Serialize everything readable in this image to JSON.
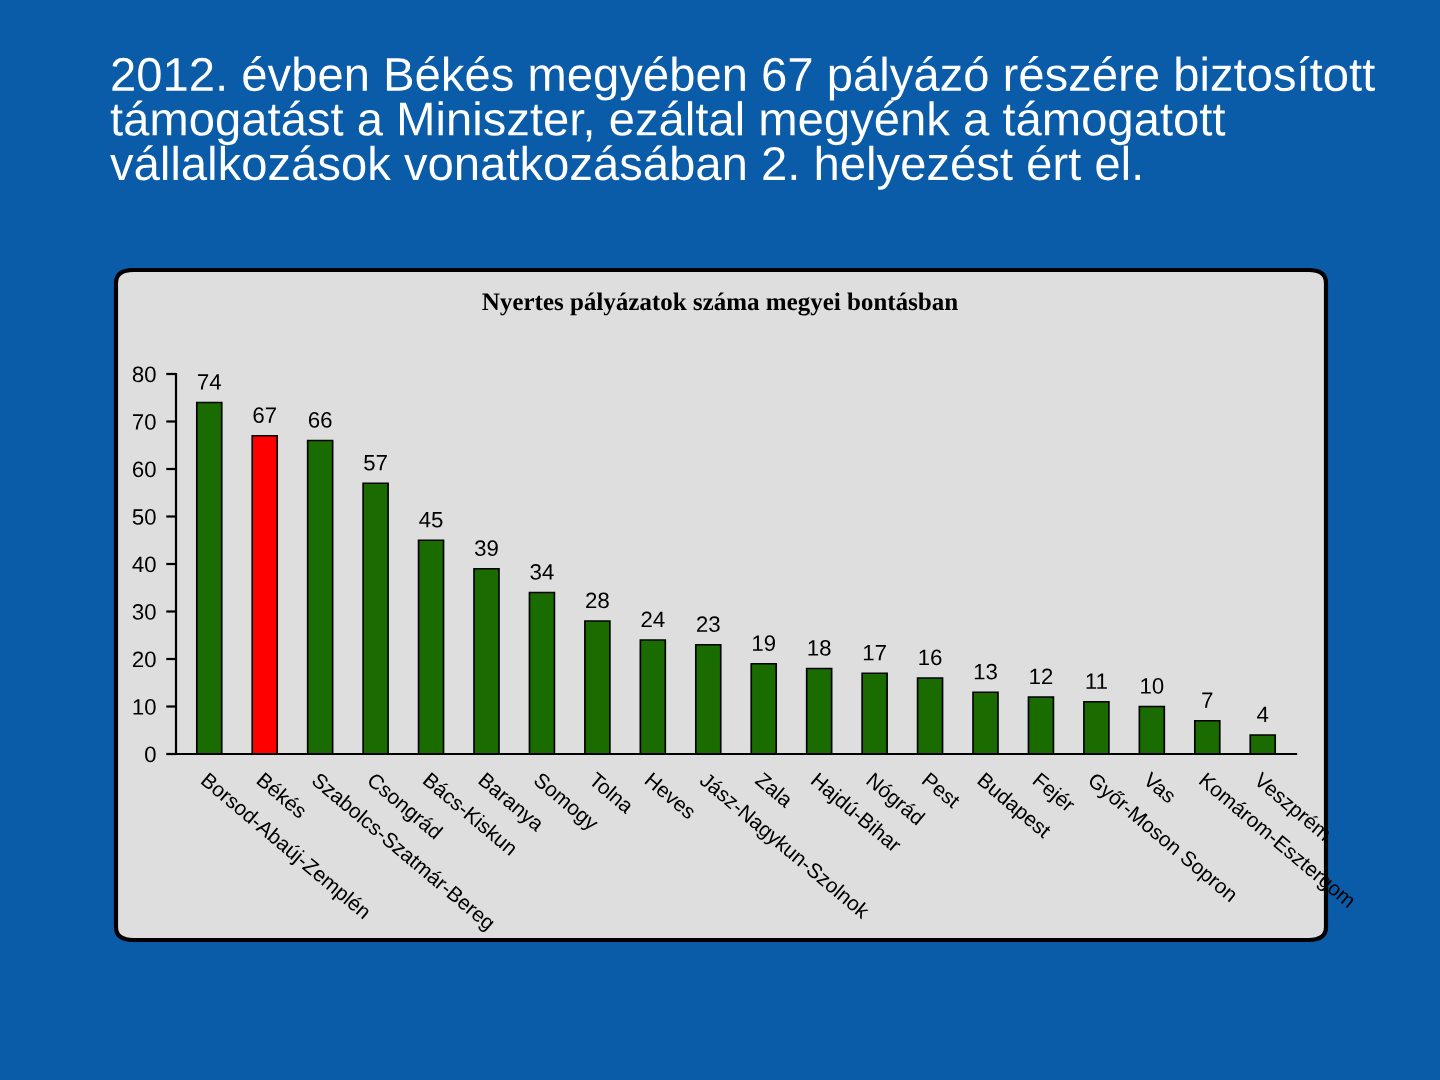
{
  "chart_data": {
    "type": "bar",
    "title": "2012. évben Békés megyében 67 pályázó részére biztosított támogatást a Miniszter, ezáltal megyénk a támogatott vállalkozások vonatkozásában 2. helyezést ért el.",
    "subtitle": "Nyertes pályázatok száma megyei bontásban",
    "categories": [
      "Borsod-Abaúj-Zemplén",
      "Békés",
      "Szabolcs-Szatmár-Bereg",
      "Csongrád",
      "Bács-Kiskun",
      "Baranya",
      "Somogy",
      "Tolna",
      "Heves",
      "Jász-Nagykun-Szolnok",
      "Zala",
      "Hajdú-Bihar",
      "Nógrád",
      "Pest",
      "Budapest",
      "Fejér",
      "Győr-Moson Sopron",
      "Vas",
      "Komárom-Esztergom",
      "Veszprém"
    ],
    "values": [
      74,
      67,
      66,
      57,
      45,
      39,
      34,
      28,
      24,
      23,
      19,
      18,
      17,
      16,
      13,
      12,
      11,
      10,
      7,
      4
    ],
    "colors": [
      "#1a6b00",
      "#ff0000",
      "#1a6b00",
      "#1a6b00",
      "#1a6b00",
      "#1a6b00",
      "#1a6b00",
      "#1a6b00",
      "#1a6b00",
      "#1a6b00",
      "#1a6b00",
      "#1a6b00",
      "#1a6b00",
      "#1a6b00",
      "#1a6b00",
      "#1a6b00",
      "#1a6b00",
      "#1a6b00",
      "#1a6b00",
      "#1a6b00"
    ],
    "ylim": [
      0,
      80
    ],
    "yticks": [
      0,
      10,
      20,
      30,
      40,
      50,
      60,
      70,
      80
    ],
    "data_labels": true
  }
}
